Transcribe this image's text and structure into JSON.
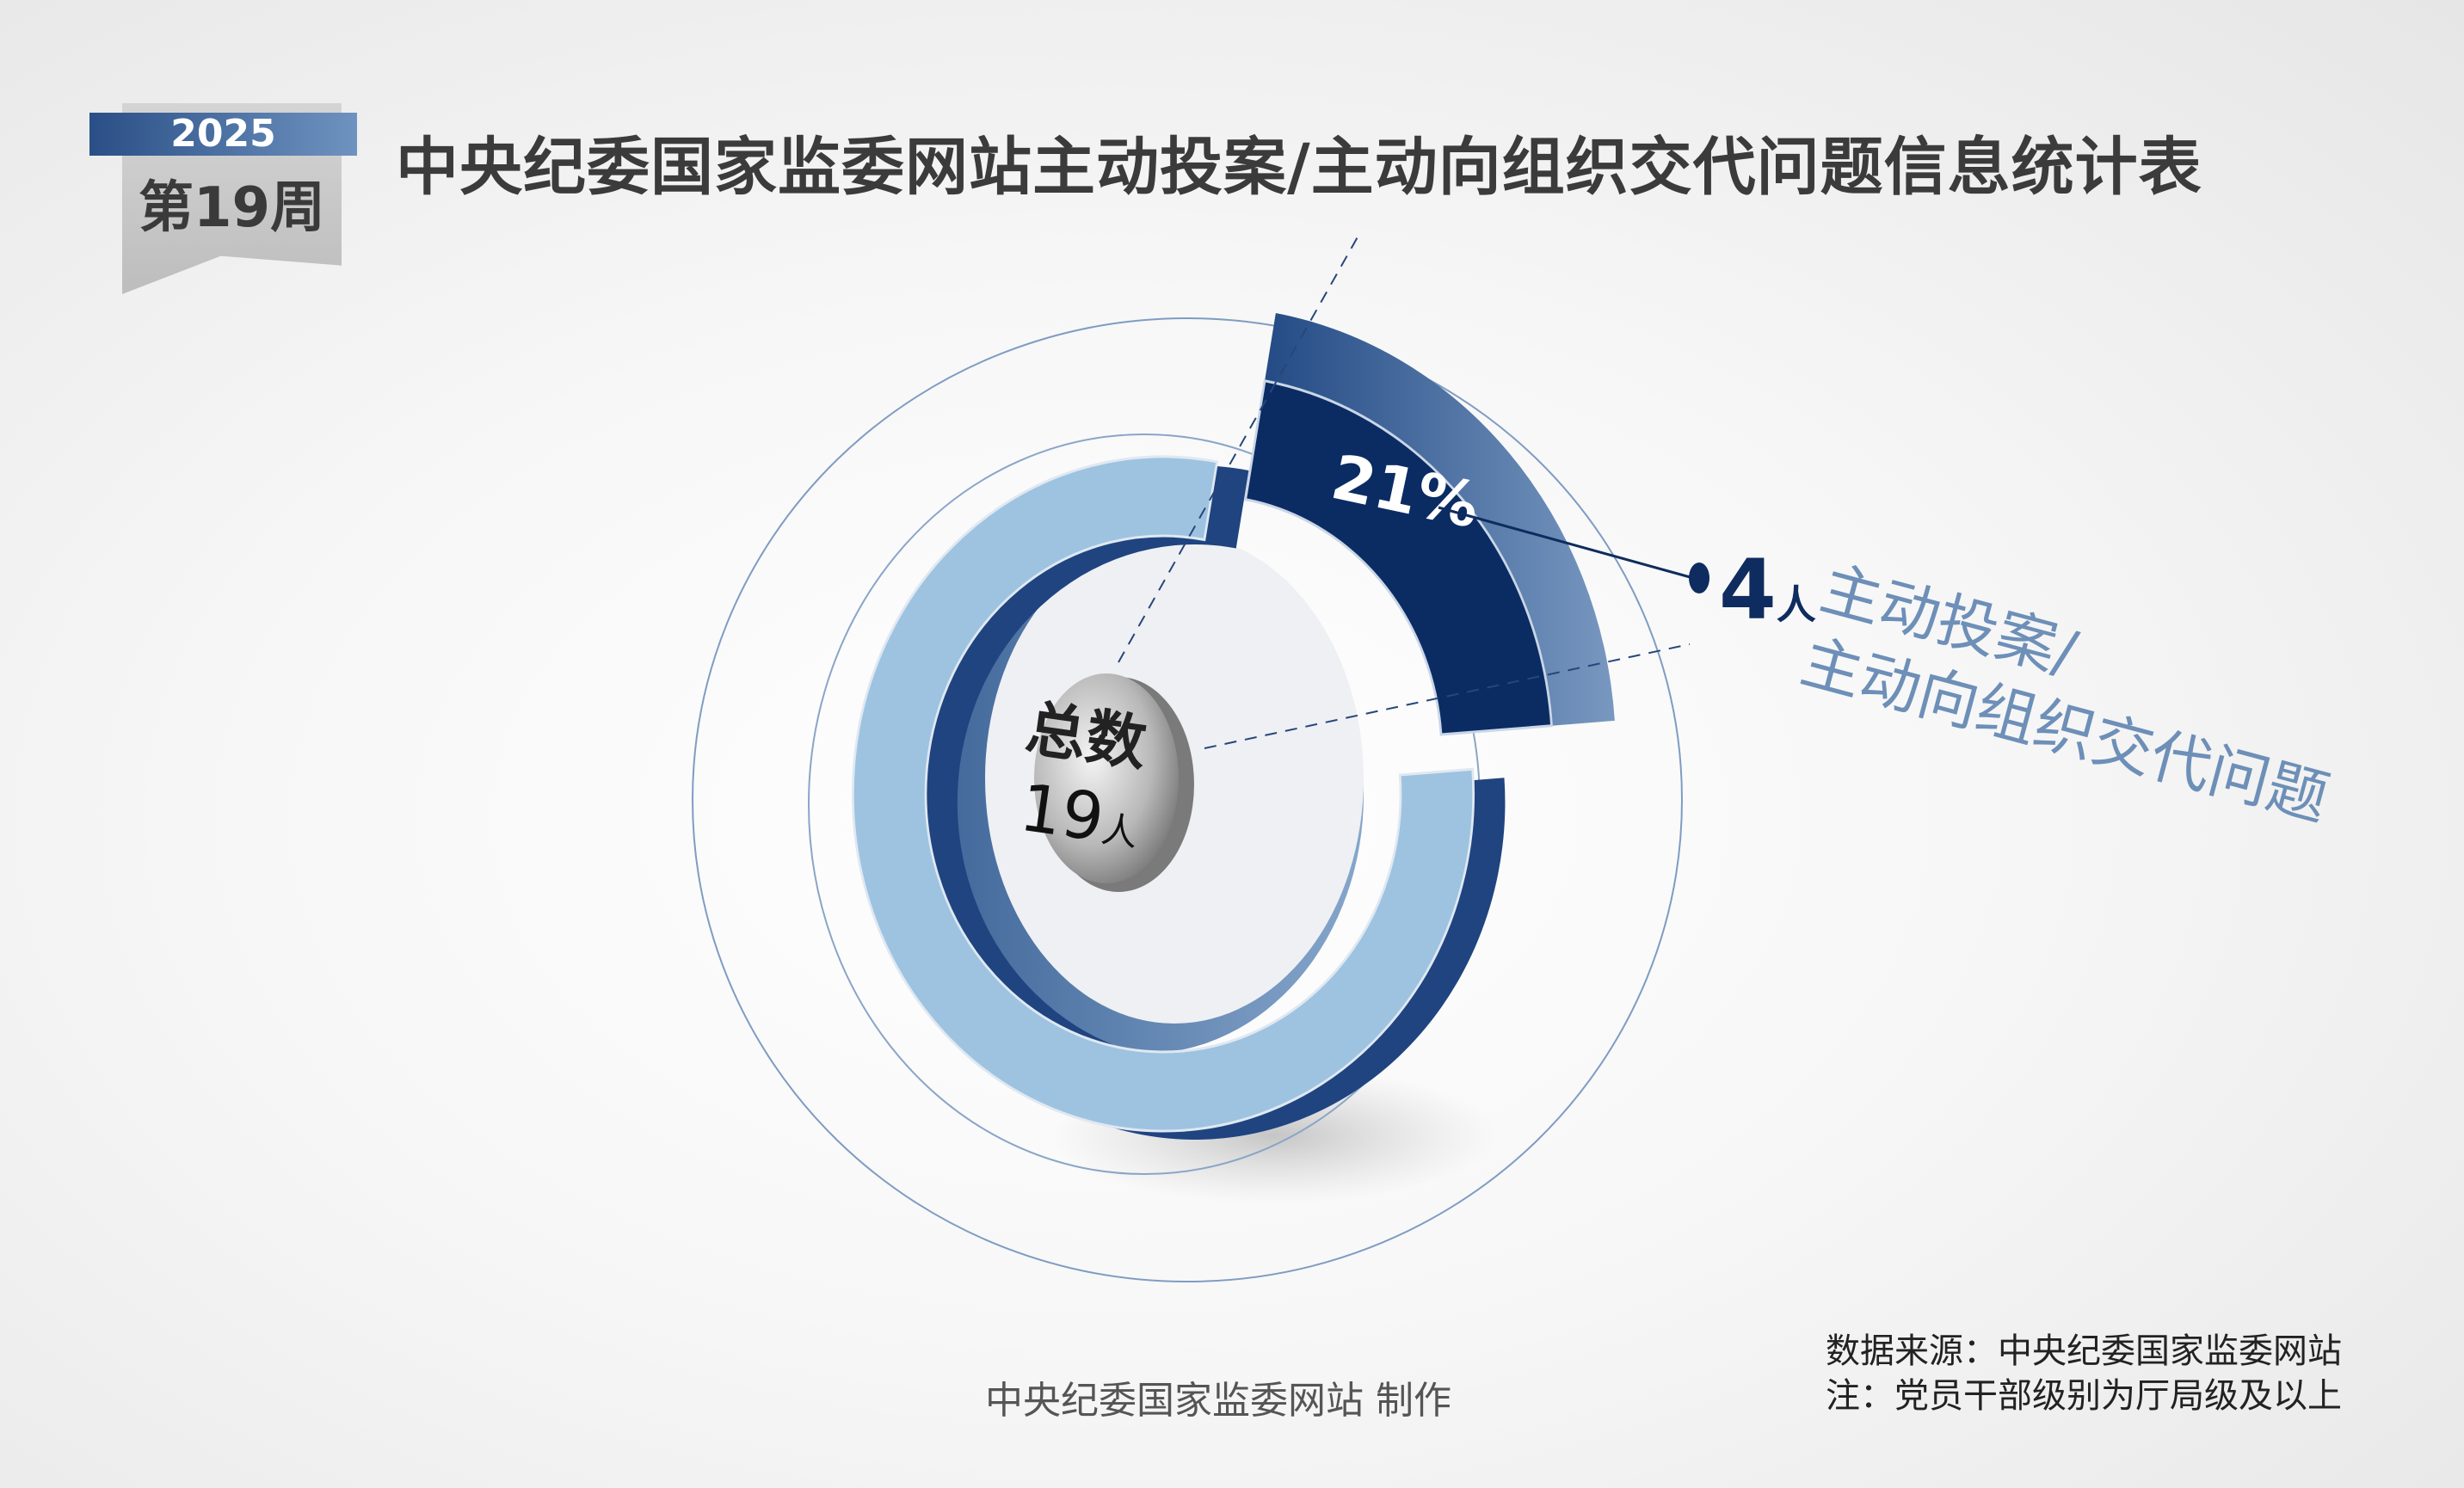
{
  "badge": {
    "year": "2025",
    "week": "第19周"
  },
  "title": "中央纪委国家监委网站主动投案/主动向组织交代问题信息统计表",
  "chart_data": {
    "type": "pie",
    "style": "3d-donut",
    "total_label": "总数",
    "total_value": "19",
    "unit": "人",
    "slices": [
      {
        "name": "主动投案/主动向组织交代问题",
        "value": 4,
        "percent_label": "21%",
        "color": "#0b2b63",
        "highlighted": true
      },
      {
        "name": "",
        "value": 15,
        "color": "#9dc3e0",
        "highlighted": false
      }
    ],
    "callout": {
      "value": "4",
      "unit": "人",
      "lines": [
        "主动投案/",
        "主动向组织交代问题"
      ]
    }
  },
  "footer": {
    "credit": "中央纪委国家监委网站 制作"
  },
  "notes": {
    "source": "数据来源：中央纪委国家监委网站",
    "note": "注：党员干部级别为厅局级及以上"
  }
}
